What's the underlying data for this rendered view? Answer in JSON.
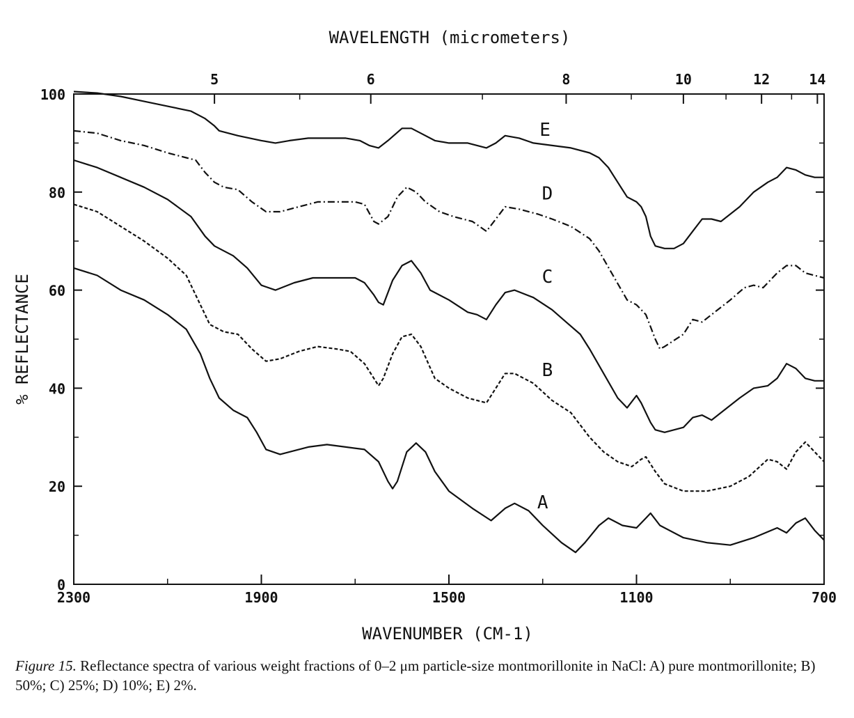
{
  "chart_data": {
    "type": "line",
    "top_axis_title": "WAVELENGTH (micrometers)",
    "xlabel": "WAVENUMBER (CM-1)",
    "ylabel": "% REFLECTANCE",
    "xlim": [
      2300,
      700
    ],
    "ylim": [
      0,
      100
    ],
    "x_ticks": [
      "2300",
      "1900",
      "1500",
      "1100",
      "700"
    ],
    "y_ticks": [
      "0",
      "20",
      "40",
      "60",
      "80",
      "100"
    ],
    "top_ticks": [
      {
        "label": "5",
        "um": 5
      },
      {
        "label": "6",
        "um": 6
      },
      {
        "label": "8",
        "um": 8
      },
      {
        "label": "10",
        "um": 10
      },
      {
        "label": "12",
        "um": 12
      },
      {
        "label": "14",
        "um": 14
      }
    ],
    "grid": false,
    "series": [
      {
        "name": "A",
        "style": "solid",
        "points": [
          [
            2300,
            64.5
          ],
          [
            2250,
            63
          ],
          [
            2200,
            60
          ],
          [
            2150,
            58
          ],
          [
            2100,
            55
          ],
          [
            2060,
            52
          ],
          [
            2030,
            47
          ],
          [
            2010,
            42
          ],
          [
            1990,
            38
          ],
          [
            1960,
            35.5
          ],
          [
            1930,
            34
          ],
          [
            1910,
            31
          ],
          [
            1890,
            27.5
          ],
          [
            1860,
            26.5
          ],
          [
            1840,
            27
          ],
          [
            1800,
            28
          ],
          [
            1760,
            28.5
          ],
          [
            1720,
            28
          ],
          [
            1680,
            27.5
          ],
          [
            1650,
            25
          ],
          [
            1630,
            21
          ],
          [
            1620,
            19.5
          ],
          [
            1610,
            21
          ],
          [
            1590,
            27
          ],
          [
            1570,
            28.8
          ],
          [
            1550,
            27
          ],
          [
            1530,
            23
          ],
          [
            1500,
            19
          ],
          [
            1450,
            15.5
          ],
          [
            1410,
            13
          ],
          [
            1380,
            15.5
          ],
          [
            1360,
            16.5
          ],
          [
            1330,
            15
          ],
          [
            1300,
            12
          ],
          [
            1260,
            8.5
          ],
          [
            1230,
            6.5
          ],
          [
            1210,
            8.5
          ],
          [
            1180,
            12
          ],
          [
            1160,
            13.5
          ],
          [
            1130,
            12
          ],
          [
            1100,
            11.5
          ],
          [
            1080,
            13.5
          ],
          [
            1070,
            14.5
          ],
          [
            1050,
            12
          ],
          [
            1000,
            9.5
          ],
          [
            950,
            8.5
          ],
          [
            900,
            8
          ],
          [
            850,
            9.5
          ],
          [
            800,
            11.5
          ],
          [
            780,
            10.5
          ],
          [
            760,
            12.5
          ],
          [
            740,
            13.5
          ],
          [
            720,
            11
          ],
          [
            700,
            9
          ]
        ]
      },
      {
        "name": "B",
        "style": "dashed",
        "points": [
          [
            2300,
            77.5
          ],
          [
            2250,
            76
          ],
          [
            2200,
            73
          ],
          [
            2150,
            70
          ],
          [
            2100,
            66.5
          ],
          [
            2060,
            63
          ],
          [
            2030,
            57
          ],
          [
            2010,
            53
          ],
          [
            1980,
            51.5
          ],
          [
            1950,
            51
          ],
          [
            1920,
            48
          ],
          [
            1890,
            45.5
          ],
          [
            1860,
            46
          ],
          [
            1820,
            47.5
          ],
          [
            1780,
            48.5
          ],
          [
            1740,
            48
          ],
          [
            1710,
            47.5
          ],
          [
            1680,
            45
          ],
          [
            1660,
            42
          ],
          [
            1650,
            40.5
          ],
          [
            1640,
            42
          ],
          [
            1620,
            47
          ],
          [
            1600,
            50.5
          ],
          [
            1580,
            51
          ],
          [
            1560,
            48.5
          ],
          [
            1530,
            42
          ],
          [
            1500,
            40
          ],
          [
            1460,
            38
          ],
          [
            1420,
            37
          ],
          [
            1400,
            40
          ],
          [
            1380,
            43
          ],
          [
            1360,
            43
          ],
          [
            1320,
            41
          ],
          [
            1280,
            37.5
          ],
          [
            1240,
            35
          ],
          [
            1200,
            30
          ],
          [
            1170,
            27
          ],
          [
            1140,
            25
          ],
          [
            1110,
            24
          ],
          [
            1090,
            25.5
          ],
          [
            1080,
            26
          ],
          [
            1060,
            23
          ],
          [
            1040,
            20.5
          ],
          [
            1000,
            19
          ],
          [
            950,
            19
          ],
          [
            900,
            20
          ],
          [
            860,
            22
          ],
          [
            820,
            25.5
          ],
          [
            800,
            25
          ],
          [
            780,
            23.5
          ],
          [
            760,
            27
          ],
          [
            740,
            29
          ],
          [
            720,
            27
          ],
          [
            700,
            25
          ]
        ]
      },
      {
        "name": "C",
        "style": "solid",
        "points": [
          [
            2300,
            86.5
          ],
          [
            2250,
            85
          ],
          [
            2200,
            83
          ],
          [
            2150,
            81
          ],
          [
            2100,
            78.5
          ],
          [
            2050,
            75
          ],
          [
            2020,
            71
          ],
          [
            2000,
            69
          ],
          [
            1960,
            67
          ],
          [
            1930,
            64.5
          ],
          [
            1900,
            61
          ],
          [
            1870,
            60
          ],
          [
            1830,
            61.5
          ],
          [
            1790,
            62.5
          ],
          [
            1750,
            62.5
          ],
          [
            1700,
            62.5
          ],
          [
            1680,
            61.5
          ],
          [
            1660,
            59
          ],
          [
            1650,
            57.5
          ],
          [
            1640,
            57
          ],
          [
            1620,
            62
          ],
          [
            1600,
            65
          ],
          [
            1580,
            66
          ],
          [
            1560,
            63.5
          ],
          [
            1540,
            60
          ],
          [
            1500,
            58
          ],
          [
            1460,
            55.5
          ],
          [
            1440,
            55
          ],
          [
            1420,
            54
          ],
          [
            1400,
            57
          ],
          [
            1380,
            59.5
          ],
          [
            1360,
            60
          ],
          [
            1320,
            58.5
          ],
          [
            1280,
            56
          ],
          [
            1250,
            53.5
          ],
          [
            1220,
            51
          ],
          [
            1200,
            48
          ],
          [
            1170,
            43
          ],
          [
            1140,
            38
          ],
          [
            1120,
            36
          ],
          [
            1100,
            38.5
          ],
          [
            1090,
            37
          ],
          [
            1070,
            33
          ],
          [
            1060,
            31.5
          ],
          [
            1040,
            31
          ],
          [
            1000,
            32
          ],
          [
            980,
            34
          ],
          [
            960,
            34.5
          ],
          [
            940,
            33.5
          ],
          [
            920,
            35
          ],
          [
            880,
            38
          ],
          [
            850,
            40
          ],
          [
            820,
            40.5
          ],
          [
            800,
            42
          ],
          [
            780,
            45
          ],
          [
            760,
            44
          ],
          [
            740,
            42
          ],
          [
            720,
            41.5
          ],
          [
            700,
            41.5
          ]
        ]
      },
      {
        "name": "D",
        "style": "dashdot",
        "points": [
          [
            2300,
            92.5
          ],
          [
            2250,
            92
          ],
          [
            2200,
            90.5
          ],
          [
            2150,
            89.5
          ],
          [
            2100,
            88
          ],
          [
            2060,
            87
          ],
          [
            2040,
            86.5
          ],
          [
            2020,
            84
          ],
          [
            2000,
            82
          ],
          [
            1980,
            81
          ],
          [
            1950,
            80.5
          ],
          [
            1920,
            78
          ],
          [
            1890,
            76
          ],
          [
            1860,
            76
          ],
          [
            1820,
            77
          ],
          [
            1780,
            78
          ],
          [
            1740,
            78
          ],
          [
            1700,
            78
          ],
          [
            1680,
            77.5
          ],
          [
            1660,
            74
          ],
          [
            1650,
            73.5
          ],
          [
            1630,
            75
          ],
          [
            1610,
            79
          ],
          [
            1590,
            81
          ],
          [
            1570,
            80
          ],
          [
            1550,
            78
          ],
          [
            1520,
            76
          ],
          [
            1490,
            75
          ],
          [
            1450,
            74
          ],
          [
            1420,
            72
          ],
          [
            1400,
            74.5
          ],
          [
            1380,
            77
          ],
          [
            1350,
            76.5
          ],
          [
            1310,
            75.5
          ],
          [
            1280,
            74.5
          ],
          [
            1240,
            73
          ],
          [
            1200,
            70.5
          ],
          [
            1180,
            68
          ],
          [
            1150,
            63
          ],
          [
            1120,
            58
          ],
          [
            1100,
            57
          ],
          [
            1080,
            55
          ],
          [
            1060,
            50
          ],
          [
            1050,
            48
          ],
          [
            1040,
            48.5
          ],
          [
            1000,
            51
          ],
          [
            980,
            54
          ],
          [
            960,
            53.5
          ],
          [
            940,
            55
          ],
          [
            900,
            58
          ],
          [
            870,
            60.5
          ],
          [
            850,
            61
          ],
          [
            830,
            60.5
          ],
          [
            820,
            61.5
          ],
          [
            800,
            63.5
          ],
          [
            780,
            65
          ],
          [
            760,
            65
          ],
          [
            740,
            63.5
          ],
          [
            720,
            63
          ],
          [
            700,
            62.5
          ]
        ]
      },
      {
        "name": "E",
        "style": "solid",
        "points": [
          [
            2300,
            100.5
          ],
          [
            2250,
            100.2
          ],
          [
            2200,
            99.5
          ],
          [
            2150,
            98.5
          ],
          [
            2100,
            97.5
          ],
          [
            2050,
            96.5
          ],
          [
            2020,
            95
          ],
          [
            2000,
            93.5
          ],
          [
            1990,
            92.5
          ],
          [
            1950,
            91.5
          ],
          [
            1900,
            90.5
          ],
          [
            1870,
            90
          ],
          [
            1840,
            90.5
          ],
          [
            1800,
            91
          ],
          [
            1760,
            91
          ],
          [
            1720,
            91
          ],
          [
            1690,
            90.5
          ],
          [
            1670,
            89.5
          ],
          [
            1650,
            89
          ],
          [
            1630,
            90.5
          ],
          [
            1600,
            93
          ],
          [
            1580,
            93
          ],
          [
            1560,
            92
          ],
          [
            1530,
            90.5
          ],
          [
            1500,
            90
          ],
          [
            1460,
            90
          ],
          [
            1420,
            89
          ],
          [
            1400,
            90
          ],
          [
            1380,
            91.5
          ],
          [
            1350,
            91
          ],
          [
            1320,
            90
          ],
          [
            1280,
            89.5
          ],
          [
            1240,
            89
          ],
          [
            1200,
            88
          ],
          [
            1180,
            87
          ],
          [
            1160,
            85
          ],
          [
            1140,
            82
          ],
          [
            1120,
            79
          ],
          [
            1100,
            78
          ],
          [
            1090,
            77
          ],
          [
            1080,
            75
          ],
          [
            1070,
            71
          ],
          [
            1060,
            69
          ],
          [
            1040,
            68.5
          ],
          [
            1020,
            68.5
          ],
          [
            1000,
            69.5
          ],
          [
            980,
            72
          ],
          [
            960,
            74.5
          ],
          [
            940,
            74.5
          ],
          [
            920,
            74
          ],
          [
            880,
            77
          ],
          [
            850,
            80
          ],
          [
            820,
            82
          ],
          [
            800,
            83
          ],
          [
            780,
            85
          ],
          [
            760,
            84.5
          ],
          [
            740,
            83.5
          ],
          [
            720,
            83
          ],
          [
            700,
            83
          ]
        ]
      }
    ],
    "annotations": [
      "A",
      "B",
      "C",
      "D",
      "E"
    ]
  },
  "caption": {
    "label": "Figure 15.",
    "text": "Reflectance spectra of various weight fractions of 0–2 μm particle-size montmorillonite in NaCl: A) pure montmorillonite; B) 50%; C) 25%; D) 10%; E) 2%."
  }
}
